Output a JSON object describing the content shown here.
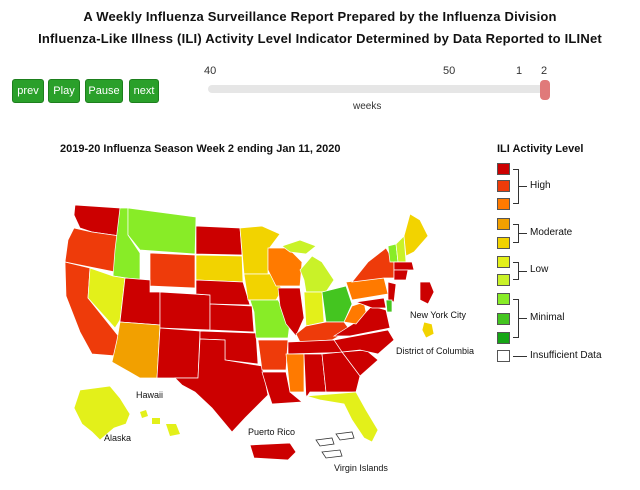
{
  "header": {
    "title_line1": "A Weekly Influenza Surveillance Report Prepared by the Influenza Division",
    "title_line2": "Influenza-Like Illness (ILI) Activity Level Indicator Determined by Data Reported to ILINet"
  },
  "controls": {
    "prev": "prev",
    "play": "Play",
    "pause": "Pause",
    "next": "next",
    "button_color": "#2aa02a"
  },
  "slider": {
    "ticks": [
      "40",
      "50",
      "1",
      "2"
    ],
    "axis_label": "weeks",
    "current_week": "2"
  },
  "map": {
    "subtitle": "2019-20 Influenza Season Week 2 ending Jan 11, 2020",
    "labels": {
      "new_york_city": "New York City",
      "dc": "District of Columbia",
      "hawaii": "Hawaii",
      "alaska": "Alaska",
      "puerto_rico": "Puerto Rico",
      "virgin_islands": "Virgin Islands"
    }
  },
  "legend": {
    "title": "ILI Activity Level",
    "groups": [
      "High",
      "Moderate",
      "Low",
      "Minimal"
    ],
    "insufficient": "Insufficient Data",
    "colors": [
      "#cc0000",
      "#ee3b0a",
      "#ff7a00",
      "#f2a000",
      "#f2d300",
      "#e3f01a",
      "#c9f228",
      "#88ec27",
      "#44c520",
      "#15a515",
      "#ffffff"
    ]
  }
}
